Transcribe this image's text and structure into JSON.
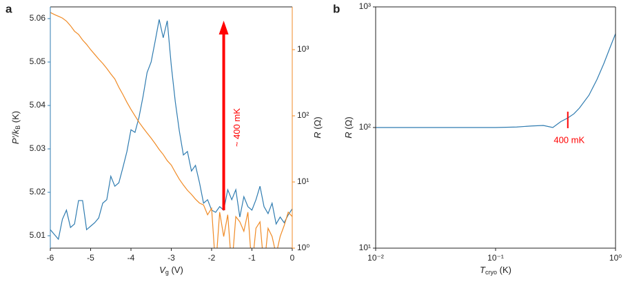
{
  "chart_data": [
    {
      "type": "line",
      "panel_label": "a",
      "xlabel": {
        "main": "V",
        "sub": "g",
        "rest": " (V)"
      },
      "ylabel": {
        "main": "P′/k",
        "sub": "B",
        "rest": " (K)"
      },
      "y2label": {
        "main": "R",
        "rest": " (Ω)"
      },
      "x": [
        -6.0,
        -5.9,
        -5.8,
        -5.7,
        -5.6,
        -5.5,
        -5.4,
        -5.3,
        -5.2,
        -5.1,
        -5.0,
        -4.9,
        -4.8,
        -4.7,
        -4.6,
        -4.5,
        -4.4,
        -4.3,
        -4.2,
        -4.1,
        -4.0,
        -3.9,
        -3.8,
        -3.7,
        -3.6,
        -3.5,
        -3.4,
        -3.3,
        -3.2,
        -3.1,
        -3.0,
        -2.9,
        -2.8,
        -2.7,
        -2.6,
        -2.5,
        -2.4,
        -2.3,
        -2.2,
        -2.1,
        -2.0,
        -1.9,
        -1.8,
        -1.7,
        -1.6,
        -1.5,
        -1.4,
        -1.3,
        -1.2,
        -1.1,
        -1.0,
        -0.9,
        -0.8,
        -0.7,
        -0.6,
        -0.5,
        -0.4,
        -0.3,
        -0.2,
        -0.1,
        0.0
      ],
      "series": [
        {
          "color": "#2e7bb0",
          "axis": "y",
          "values": [
            5.0114,
            5.0103,
            5.0092,
            5.0138,
            5.0159,
            5.0119,
            5.0127,
            5.0181,
            5.0181,
            5.0114,
            5.0122,
            5.013,
            5.0141,
            5.0175,
            5.0183,
            5.0237,
            5.0214,
            5.0222,
            5.0257,
            5.0294,
            5.0344,
            5.0338,
            5.0373,
            5.0421,
            5.0476,
            5.05,
            5.0548,
            5.0598,
            5.0556,
            5.0595,
            5.0492,
            5.0408,
            5.0341,
            5.0286,
            5.0294,
            5.0249,
            5.0262,
            5.0222,
            5.0175,
            5.0183,
            5.0159,
            5.0154,
            5.0167,
            5.0159,
            5.0206,
            5.0183,
            5.0206,
            5.0143,
            5.019,
            5.0167,
            5.0159,
            5.0183,
            5.0214,
            5.0167,
            5.0151,
            5.0175,
            5.0127,
            5.0143,
            5.013,
            5.0148,
            5.0162
          ]
        },
        {
          "color": "#f08a24",
          "axis": "y2",
          "values": [
            3650,
            3400,
            3200,
            3000,
            2700,
            2300,
            1900,
            1700,
            1400,
            1200,
            1000,
            850,
            720,
            620,
            520,
            430,
            360,
            270,
            210,
            160,
            125,
            100,
            80,
            66,
            55,
            46,
            38,
            31,
            26,
            21,
            18,
            14,
            11,
            9,
            7.5,
            6.5,
            5.5,
            4.8,
            4.5,
            3.2,
            4.0,
            0.5,
            3.5,
            1.5,
            3.2,
            0.5,
            3.0,
            2.5,
            1.8,
            3.5,
            0.5,
            2.0,
            2.5,
            0.5,
            2.0,
            1.5,
            0.8,
            1.5,
            2.2,
            3.5,
            3.0
          ]
        }
      ],
      "xlim": [
        -6,
        0
      ],
      "xticks": [
        -6,
        -5,
        -4,
        -3,
        -2,
        -1,
        0
      ],
      "ylim": [
        5.00714,
        5.0627
      ],
      "yticks": [
        5.01,
        5.02,
        5.03,
        5.04,
        5.05,
        5.06
      ],
      "y2lim": [
        1,
        4430
      ],
      "y2scale": "log",
      "y2ticks": [
        {
          "value": 1,
          "label": "10⁰"
        },
        {
          "value": 10,
          "label": "10¹"
        },
        {
          "value": 100,
          "label": "10²"
        },
        {
          "value": 1000,
          "label": "10³"
        }
      ],
      "annotation": {
        "text": "~ 400 mK",
        "x": -1.7,
        "color": "#ff0000"
      }
    },
    {
      "type": "line",
      "panel_label": "b",
      "xlabel": {
        "main": "T",
        "sub": "cryo",
        "rest": " (K)"
      },
      "ylabel": {
        "main": "R",
        "rest": " (Ω)"
      },
      "xscale": "log",
      "yscale": "log",
      "x": [
        0.01,
        0.02,
        0.05,
        0.1,
        0.15,
        0.2,
        0.25,
        0.3,
        0.35,
        0.4,
        0.45,
        0.5,
        0.6,
        0.7,
        0.8,
        0.9,
        1.0
      ],
      "series": [
        {
          "color": "#2e7bb0",
          "axis": "y",
          "values": [
            100,
            100,
            100,
            100,
            101,
            103,
            104,
            100,
            112,
            120,
            130,
            145,
            185,
            250,
            340,
            460,
            600
          ]
        }
      ],
      "xlim": [
        0.01,
        1
      ],
      "xticks": [
        {
          "value": 0.01,
          "label": "10⁻²"
        },
        {
          "value": 0.1,
          "label": "10⁻¹"
        },
        {
          "value": 1,
          "label": "10⁰"
        }
      ],
      "ylim": [
        10,
        1000
      ],
      "yticks": [
        {
          "value": 10,
          "label": "10¹"
        },
        {
          "value": 100,
          "label": "10²"
        },
        {
          "value": 1000,
          "label": "10³"
        }
      ],
      "annotation": {
        "text": "400 mK",
        "x": 0.4,
        "color": "#ff0000"
      }
    }
  ]
}
